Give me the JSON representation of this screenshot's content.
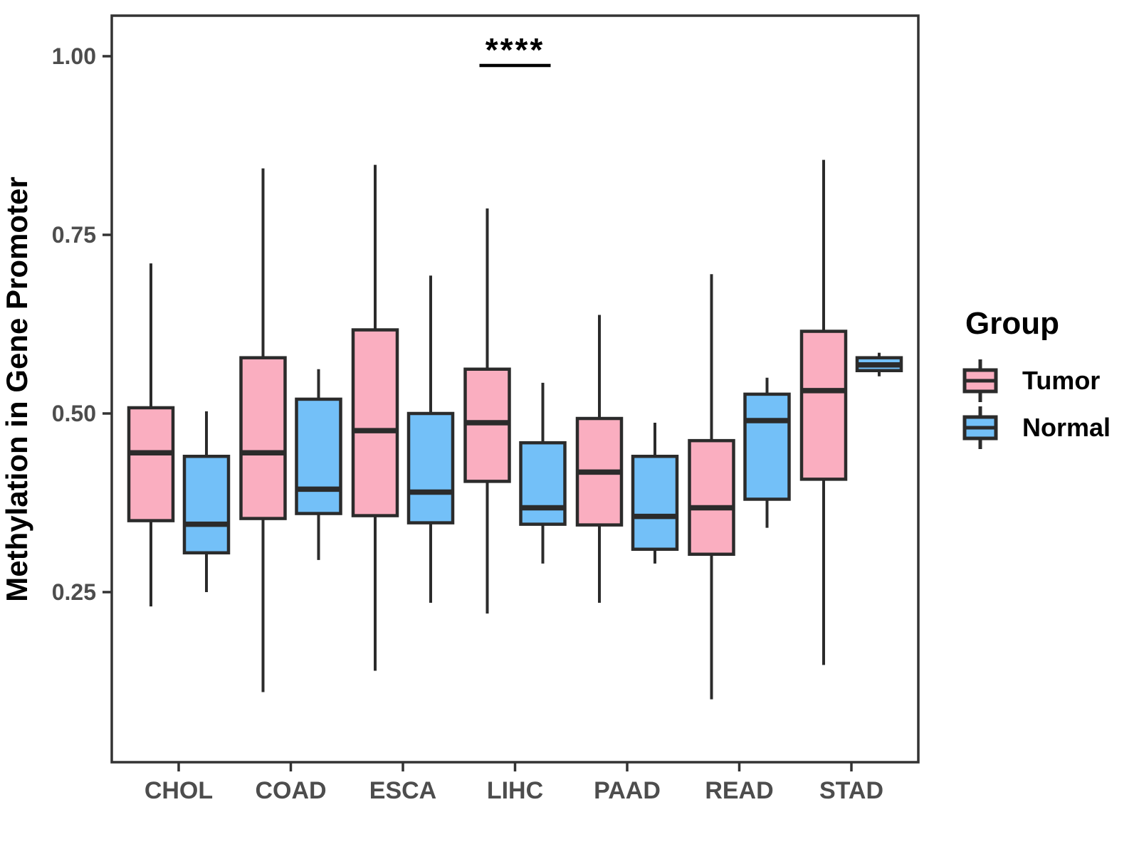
{
  "chart_data": {
    "type": "boxplot",
    "title": "",
    "xlabel": "",
    "ylabel": "Methylation in Gene Promoter",
    "grid": false,
    "categories": [
      "CHOL",
      "COAD",
      "ESCA",
      "LIHC",
      "PAAD",
      "READ",
      "STAD"
    ],
    "y_axis": {
      "min": 0.01,
      "max": 1.06,
      "ticks": [
        {
          "value": 0.25,
          "label": "0.25"
        },
        {
          "value": 0.5,
          "label": "0.50"
        },
        {
          "value": 0.75,
          "label": "0.75"
        },
        {
          "value": 1.0,
          "label": "1.00"
        }
      ]
    },
    "legend": {
      "title": "Group",
      "position": "right",
      "entries": [
        {
          "name": "Tumor",
          "color": "#FAAEC0"
        },
        {
          "name": "Normal",
          "color": "#73C0F8"
        }
      ]
    },
    "series": [
      {
        "name": "Tumor",
        "color": "#FAAEC0",
        "boxes": [
          {
            "category": "CHOL",
            "whisker_low": 0.23,
            "q1": 0.35,
            "median": 0.445,
            "q3": 0.508,
            "whisker_high": 0.71
          },
          {
            "category": "COAD",
            "whisker_low": 0.11,
            "q1": 0.353,
            "median": 0.445,
            "q3": 0.578,
            "whisker_high": 0.843
          },
          {
            "category": "ESCA",
            "whisker_low": 0.14,
            "q1": 0.357,
            "median": 0.476,
            "q3": 0.617,
            "whisker_high": 0.848
          },
          {
            "category": "LIHC",
            "whisker_low": 0.22,
            "q1": 0.405,
            "median": 0.487,
            "q3": 0.562,
            "whisker_high": 0.787
          },
          {
            "category": "PAAD",
            "whisker_low": 0.235,
            "q1": 0.344,
            "median": 0.418,
            "q3": 0.493,
            "whisker_high": 0.638
          },
          {
            "category": "READ",
            "whisker_low": 0.1,
            "q1": 0.303,
            "median": 0.368,
            "q3": 0.462,
            "whisker_high": 0.695
          },
          {
            "category": "STAD",
            "whisker_low": 0.148,
            "q1": 0.408,
            "median": 0.532,
            "q3": 0.615,
            "whisker_high": 0.855
          }
        ]
      },
      {
        "name": "Normal",
        "color": "#73C0F8",
        "boxes": [
          {
            "category": "CHOL",
            "whisker_low": 0.25,
            "q1": 0.305,
            "median": 0.345,
            "q3": 0.44,
            "whisker_high": 0.503
          },
          {
            "category": "COAD",
            "whisker_low": 0.295,
            "q1": 0.36,
            "median": 0.394,
            "q3": 0.52,
            "whisker_high": 0.562
          },
          {
            "category": "ESCA",
            "whisker_low": 0.235,
            "q1": 0.347,
            "median": 0.39,
            "q3": 0.5,
            "whisker_high": 0.693
          },
          {
            "category": "LIHC",
            "whisker_low": 0.29,
            "q1": 0.345,
            "median": 0.368,
            "q3": 0.459,
            "whisker_high": 0.543
          },
          {
            "category": "PAAD",
            "whisker_low": 0.29,
            "q1": 0.31,
            "median": 0.356,
            "q3": 0.44,
            "whisker_high": 0.487
          },
          {
            "category": "READ",
            "whisker_low": 0.34,
            "q1": 0.38,
            "median": 0.49,
            "q3": 0.527,
            "whisker_high": 0.55
          },
          {
            "category": "STAD",
            "whisker_low": 0.552,
            "q1": 0.56,
            "median": 0.568,
            "q3": 0.578,
            "whisker_high": 0.585
          }
        ]
      }
    ],
    "annotations": [
      {
        "type": "significance",
        "label": "****",
        "category": "LIHC",
        "line_y": 0.987,
        "spans": [
          "Tumor",
          "Normal"
        ]
      }
    ],
    "style": {
      "box_stroke": "#2B2B2B",
      "panel_border": "#333333",
      "axis_text_color": "#4D4D4D",
      "annotation_color": "#000000"
    }
  }
}
